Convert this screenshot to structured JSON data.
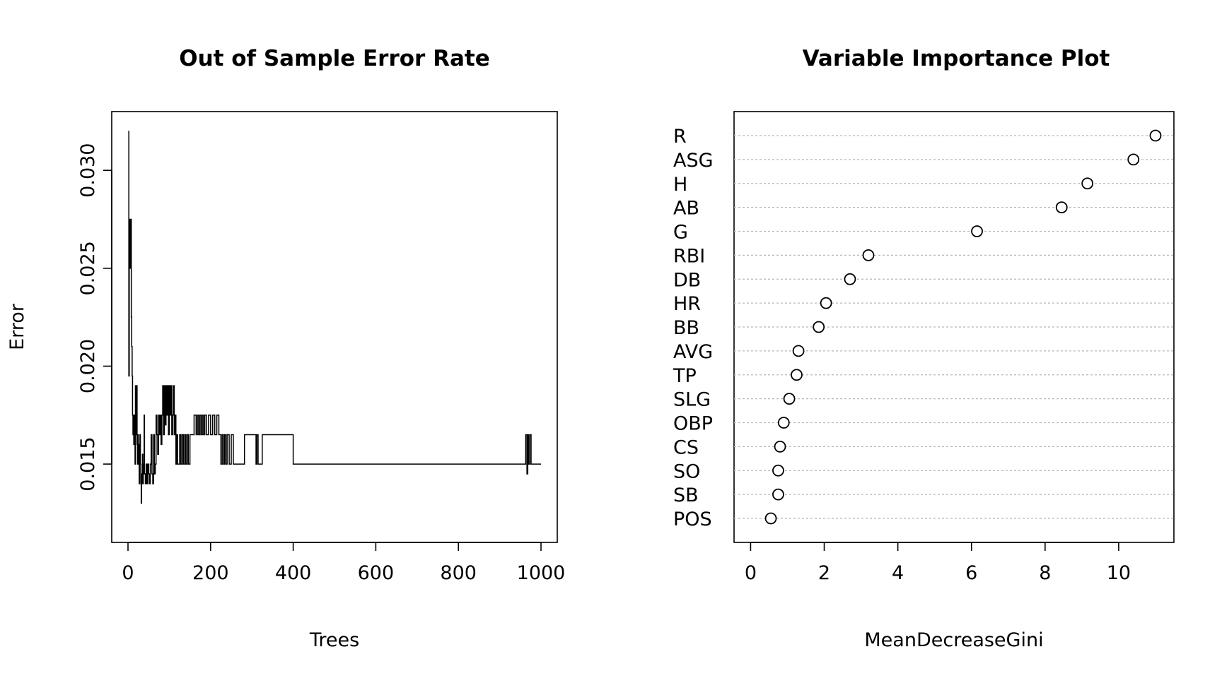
{
  "chart_data": [
    {
      "type": "line",
      "title": "Out of Sample Error Rate",
      "xlabel": "Trees",
      "ylabel": "Error",
      "xlim": [
        0,
        1000
      ],
      "ylim": [
        0.011,
        0.033
      ],
      "xticks": [
        0,
        200,
        400,
        600,
        800,
        1000
      ],
      "xtick_labels": [
        "0",
        "200",
        "400",
        "600",
        "800",
        "1000"
      ],
      "yticks": [
        0.015,
        0.02,
        0.025,
        0.03
      ],
      "ytick_labels": [
        "0.015",
        "0.020",
        "0.025",
        "0.030"
      ],
      "grid": false,
      "series": [
        {
          "x": [
            1,
            2,
            3,
            4,
            5,
            6,
            7,
            8,
            9,
            10,
            11,
            12,
            13,
            14,
            15,
            16,
            17,
            18,
            19,
            20,
            21,
            22,
            23,
            24,
            25,
            26,
            27,
            28,
            29,
            30,
            31,
            32,
            33,
            34,
            35,
            36,
            37,
            38,
            39,
            40,
            42,
            44,
            46,
            48,
            50,
            52,
            54,
            56,
            58,
            60,
            62,
            64,
            66,
            68,
            70,
            72,
            74,
            76,
            78,
            80,
            82,
            84,
            86,
            88,
            90,
            92,
            94,
            96,
            98,
            100,
            102,
            104,
            106,
            108,
            110,
            112,
            114,
            116,
            118,
            120,
            125,
            128,
            131,
            134,
            137,
            140,
            143,
            146,
            150,
            160,
            165,
            168,
            171,
            174,
            177,
            180,
            183,
            186,
            190,
            195,
            200,
            205,
            210,
            215,
            220,
            225,
            228,
            231,
            234,
            237,
            240,
            245,
            250,
            255,
            260,
            280,
            282,
            300,
            310,
            312,
            315,
            320,
            325,
            330,
            400,
            960,
            963,
            966,
            968,
            970,
            973,
            976,
            980,
            1000
          ],
          "y": [
            0.032,
            0.0195,
            0.025,
            0.0275,
            0.0265,
            0.025,
            0.0275,
            0.0225,
            0.021,
            0.0195,
            0.0175,
            0.0165,
            0.0175,
            0.016,
            0.0175,
            0.0165,
            0.015,
            0.019,
            0.0165,
            0.0175,
            0.019,
            0.016,
            0.015,
            0.0165,
            0.015,
            0.016,
            0.014,
            0.015,
            0.0165,
            0.015,
            0.014,
            0.013,
            0.0145,
            0.014,
            0.0155,
            0.014,
            0.0145,
            0.015,
            0.0175,
            0.0145,
            0.014,
            0.015,
            0.014,
            0.015,
            0.0145,
            0.014,
            0.015,
            0.0165,
            0.0145,
            0.014,
            0.0165,
            0.0145,
            0.015,
            0.0175,
            0.0165,
            0.0155,
            0.0175,
            0.0165,
            0.0175,
            0.016,
            0.0175,
            0.019,
            0.0165,
            0.019,
            0.017,
            0.019,
            0.0175,
            0.019,
            0.0165,
            0.019,
            0.0175,
            0.019,
            0.0165,
            0.0175,
            0.019,
            0.0165,
            0.0175,
            0.015,
            0.0165,
            0.015,
            0.0165,
            0.015,
            0.0165,
            0.015,
            0.0165,
            0.015,
            0.0165,
            0.015,
            0.0165,
            0.0175,
            0.0165,
            0.0175,
            0.0165,
            0.0175,
            0.0165,
            0.0175,
            0.0165,
            0.0175,
            0.0165,
            0.0175,
            0.0165,
            0.0175,
            0.0165,
            0.0175,
            0.0165,
            0.015,
            0.0165,
            0.015,
            0.0165,
            0.015,
            0.0165,
            0.015,
            0.0165,
            0.015,
            0.015,
            0.015,
            0.0165,
            0.0165,
            0.015,
            0.0165,
            0.015,
            0.015,
            0.0165,
            0.0165,
            0.015,
            0.015,
            0.0165,
            0.0145,
            0.0165,
            0.015,
            0.0165,
            0.015,
            0.015,
            0.015
          ]
        }
      ]
    },
    {
      "type": "scatter",
      "title": "Variable Importance Plot",
      "xlabel": "MeanDecreaseGini",
      "ylabel": "",
      "xlim": [
        -0.45,
        11.5
      ],
      "xticks": [
        0,
        2,
        4,
        6,
        8,
        10
      ],
      "xtick_labels": [
        "0",
        "2",
        "4",
        "6",
        "8",
        "10"
      ],
      "grid": false,
      "categories": [
        "R",
        "ASG",
        "H",
        "AB",
        "G",
        "RBI",
        "DB",
        "HR",
        "BB",
        "AVG",
        "TP",
        "SLG",
        "OBP",
        "CS",
        "SO",
        "SB",
        "POS"
      ],
      "values": [
        11.0,
        10.4,
        9.15,
        8.45,
        6.15,
        3.2,
        2.7,
        2.05,
        1.85,
        1.3,
        1.25,
        1.05,
        0.9,
        0.8,
        0.75,
        0.75,
        0.55
      ]
    }
  ]
}
